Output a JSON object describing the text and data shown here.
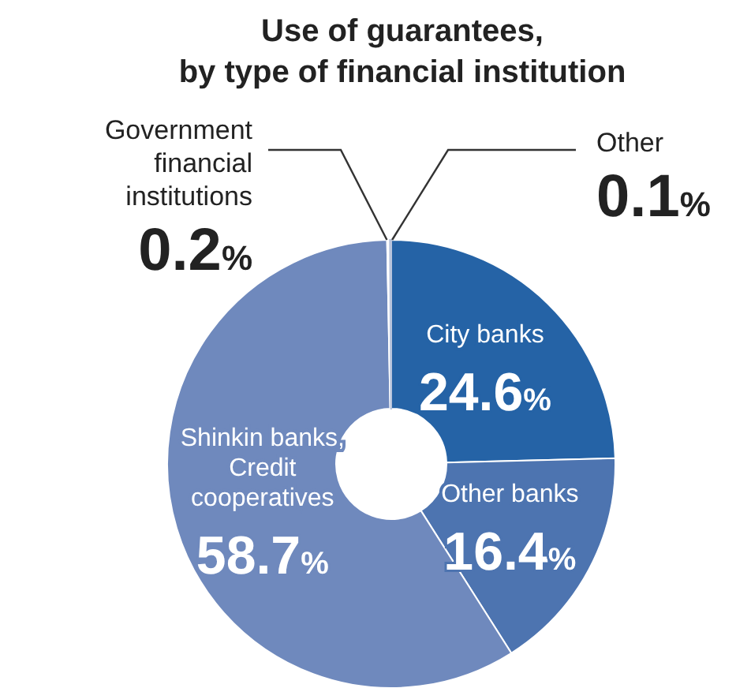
{
  "chart_data": {
    "type": "donut",
    "title": "Use of guarantees,\nby type of financial institution",
    "categories": [
      "City banks",
      "Other banks",
      "Shinkin banks, Credit cooperatives",
      "Government financial institutions",
      "Other"
    ],
    "values": [
      24.6,
      16.4,
      58.7,
      0.2,
      0.1
    ],
    "value_labels": [
      "24.6%",
      "16.4%",
      "58.7%",
      "0.2%",
      "0.1%"
    ],
    "colors": [
      "#2563a6",
      "#4d74b0",
      "#6f89bd",
      "#ffffff",
      "#b8c4dc"
    ]
  }
}
